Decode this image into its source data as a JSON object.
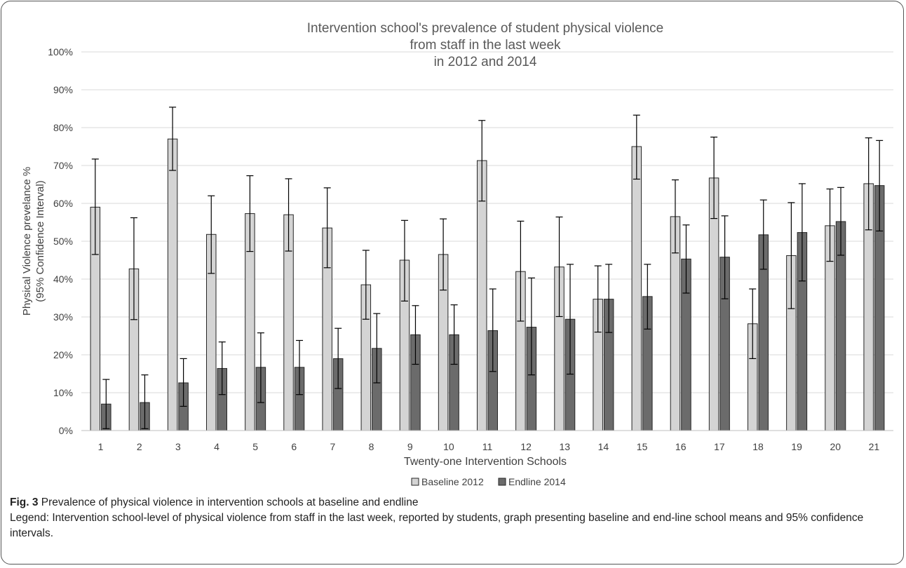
{
  "chart_data": {
    "type": "bar",
    "title": [
      "Intervention  school's prevalence of student physical violence",
      "from staff in the last week",
      "in 2012 and 2014"
    ],
    "xlabel": "Twenty-one  Intervention Schools",
    "ylabel": [
      "Physical Violence prevelance %",
      "(95% Confidence Interval)"
    ],
    "ylim": [
      0,
      100
    ],
    "yticks": [
      "0%",
      "10%",
      "20%",
      "30%",
      "40%",
      "50%",
      "60%",
      "70%",
      "80%",
      "90%",
      "100%"
    ],
    "grid": true,
    "legend_position": "bottom",
    "categories": [
      "1",
      "2",
      "3",
      "4",
      "5",
      "6",
      "7",
      "8",
      "9",
      "10",
      "11",
      "12",
      "13",
      "14",
      "15",
      "16",
      "17",
      "18",
      "19",
      "20",
      "21"
    ],
    "series": [
      {
        "name": "Baseline 2012",
        "color": "#d4d4d4",
        "values": [
          59,
          42.7,
          77,
          51.8,
          57.3,
          57,
          53.5,
          38.5,
          45,
          46.5,
          71.3,
          42,
          43.2,
          34.7,
          75,
          56.5,
          66.7,
          28.2,
          46.2,
          54.1,
          65.2
        ],
        "ci_low": [
          46.5,
          29.3,
          68.7,
          41.5,
          47.3,
          47.4,
          43,
          29.4,
          34.2,
          37.1,
          60.6,
          28.9,
          30.1,
          26,
          66.4,
          46.9,
          56,
          19,
          32.2,
          44.7,
          53
        ],
        "ci_high": [
          71.7,
          56.2,
          85.4,
          62,
          67.3,
          66.5,
          64.1,
          47.6,
          55.5,
          55.9,
          81.9,
          55.3,
          56.4,
          43.5,
          83.3,
          66.2,
          77.5,
          37.4,
          60.2,
          63.8,
          77.3
        ]
      },
      {
        "name": "Endline 2014",
        "color": "#6b6b6b",
        "values": [
          7,
          7.4,
          12.6,
          16.4,
          16.7,
          16.7,
          19,
          21.7,
          25.3,
          25.3,
          26.4,
          27.3,
          29.4,
          34.7,
          35.4,
          45.3,
          45.8,
          51.7,
          52.3,
          55.2,
          64.7
        ],
        "ci_low": [
          0.5,
          0.5,
          6.4,
          9.5,
          7.4,
          9.5,
          11.1,
          12.6,
          17.5,
          17.5,
          15.6,
          14.7,
          14.9,
          25.9,
          26.8,
          36.3,
          34.8,
          42.6,
          39.5,
          46.3,
          52.7
        ],
        "ci_high": [
          13.5,
          14.7,
          19,
          23.4,
          25.8,
          23.8,
          27,
          30.9,
          33,
          33.2,
          37.4,
          40.3,
          43.9,
          43.9,
          43.9,
          54.3,
          56.7,
          60.9,
          65.2,
          64.2,
          76.6
        ]
      }
    ]
  },
  "caption": {
    "fig_label": "Fig. 3",
    "fig_title": " Prevalence of physical violence in intervention schools at baseline and endline",
    "legend_text": "Legend: Intervention school-level of physical violence from staff in the last week, reported by students, graph presenting baseline and end-line school means and 95% confidence intervals."
  }
}
